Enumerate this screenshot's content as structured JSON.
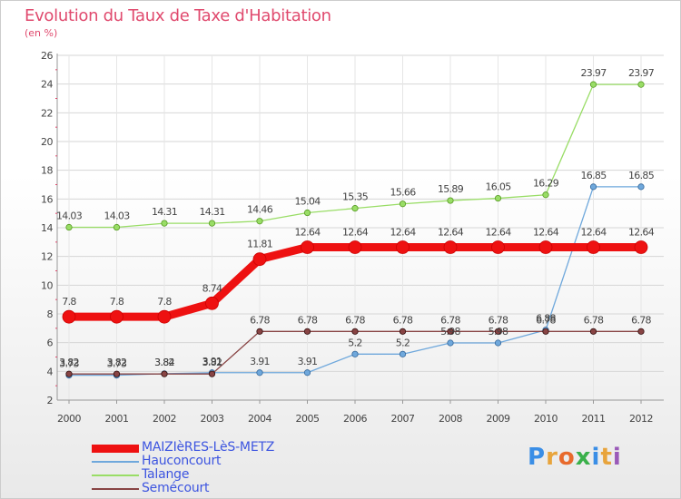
{
  "title": "Evolution du Taux de Taxe d'Habitation",
  "unit": "(en %)",
  "logo": {
    "text": "Proxiti",
    "colors": [
      "#3a8ee6",
      "#e8a43c",
      "#e86a2c",
      "#3ab04a",
      "#3a8ee6",
      "#e8a43c",
      "#9a5ab8"
    ]
  },
  "chart_data": {
    "type": "line",
    "x": [
      "2000",
      "2001",
      "2002",
      "2003",
      "2004",
      "2005",
      "2006",
      "2007",
      "2008",
      "2009",
      "2010",
      "2011",
      "2012"
    ],
    "ylim": [
      2,
      26
    ],
    "yticks": [
      2,
      4,
      6,
      8,
      10,
      12,
      14,
      16,
      18,
      20,
      22,
      24,
      26
    ],
    "grid": true,
    "legend_position": "bottom-left",
    "series": [
      {
        "name": "MAIZIèRES-LèS-METZ",
        "color": "#ee1111",
        "values": [
          7.8,
          7.8,
          7.8,
          8.74,
          11.81,
          12.64,
          12.64,
          12.64,
          12.64,
          12.64,
          12.64,
          12.64,
          12.64
        ],
        "labels": [
          "7.8",
          "7.8",
          "7.8",
          "8.74",
          "11.81",
          "12.64",
          "12.64",
          "12.64",
          "12.64",
          "12.64",
          "12.64",
          "12.64",
          "12.64"
        ]
      },
      {
        "name": "Hauconcourt",
        "color": "#6fa8dc",
        "values": [
          3.73,
          3.73,
          3.84,
          3.91,
          3.91,
          3.91,
          5.2,
          5.2,
          5.98,
          5.98,
          6.88,
          16.85,
          16.85
        ],
        "labels": [
          "3.73",
          "3.73",
          "3.84",
          "3.91",
          "3.91",
          "3.91",
          "5.2",
          "5.2",
          "5.98",
          "5.98",
          "6.88",
          "16.85",
          "16.85"
        ]
      },
      {
        "name": "Talange",
        "color": "#99dd66",
        "values": [
          14.03,
          14.03,
          14.31,
          14.31,
          14.46,
          15.04,
          15.35,
          15.66,
          15.89,
          16.05,
          16.29,
          23.97,
          23.97
        ],
        "labels": [
          "14.03",
          "14.03",
          "14.31",
          "14.31",
          "14.46",
          "15.04",
          "15.35",
          "15.66",
          "15.89",
          "16.05",
          "16.29",
          "23.97",
          "23.97"
        ]
      },
      {
        "name": "Semécourt",
        "color": "#884444",
        "values": [
          3.82,
          3.82,
          3.82,
          3.82,
          6.78,
          6.78,
          6.78,
          6.78,
          6.78,
          6.78,
          6.78,
          6.78,
          6.78
        ],
        "labels": [
          "3.82",
          "3.82",
          "3.82",
          "3.82",
          "6.78",
          "6.78",
          "6.78",
          "6.78",
          "6.78",
          "6.78",
          "6.78",
          "6.78",
          "6.78"
        ]
      }
    ]
  }
}
